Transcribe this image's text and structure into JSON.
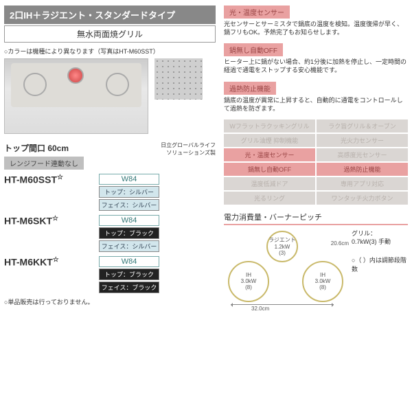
{
  "header": {
    "title": "2口IH＋ラジエント・スタンダードタイプ",
    "subtitle": "無水両面焼グリル"
  },
  "colorNote": "○カラーは機種により異なります（写真はHT-M60SST）",
  "topSpec": "トップ間口 60cm",
  "rangeHood": "レンジフード連動なし",
  "makerNote": "日立グローバルライフ\nソリューションズ製",
  "models": [
    {
      "code": "HT-M60SST",
      "w": "W84",
      "top": "トップ：シルバー",
      "topClass": "silver",
      "face": "フェイス：シルバー",
      "faceClass": "silver"
    },
    {
      "code": "HT-M6SKT",
      "w": "W84",
      "top": "トップ：ブラック",
      "topClass": "black",
      "face": "フェイス：シルバー",
      "faceClass": "silver"
    },
    {
      "code": "HT-M6KKT",
      "w": "W84",
      "top": "トップ：ブラック",
      "topClass": "black",
      "face": "フェイス：ブラック",
      "faceClass": "black"
    }
  ],
  "footNote": "○単品販売は行っておりません。",
  "features": [
    {
      "title": "光・温度センサー",
      "text": "光センサーとサーミスタで鍋底の温度を検知。温度復帰が早く、鍋フリもOK。予熱完了もお知らせします。"
    },
    {
      "title": "鍋無し自動OFF",
      "text": "ヒーター上に鍋がない場合、約1分後に加熱を停止し、一定時間の経過で通電をストップする安心機能です。"
    },
    {
      "title": "過熱防止機能",
      "text": "鍋底の温度が異常に上昇すると、自動的に通電をコントロールして過熱を防ぎます。"
    }
  ],
  "gridItems": [
    {
      "label": "Wフラットラクッキングリル",
      "active": false
    },
    {
      "label": "ラク旨グリル＆オーブン",
      "active": false
    },
    {
      "label": "グリル油煙 抑制機能",
      "active": false
    },
    {
      "label": "光火力センサー",
      "active": false
    },
    {
      "label": "光・温度センサー",
      "active": true
    },
    {
      "label": "高感度光センサー",
      "active": false
    },
    {
      "label": "鍋無し自動OFF",
      "active": true
    },
    {
      "label": "過熱防止機能",
      "active": true
    },
    {
      "label": "温度低減ドア",
      "active": false
    },
    {
      "label": "専用アプリ対応",
      "active": false
    },
    {
      "label": "光るリング",
      "active": false
    },
    {
      "label": "ワンタッチ火力ボタン",
      "active": false
    }
  ],
  "power": {
    "title": "電力消費量・バーナーピッチ",
    "left": {
      "l1": "IH",
      "l2": "3.0kW",
      "l3": "(8)"
    },
    "center": {
      "l1": "ラジエント",
      "l2": "1.2kW",
      "l3": "(3)"
    },
    "right": {
      "l1": "IH",
      "l2": "3.0kW",
      "l3": "(8)"
    },
    "width": "32.0cm",
    "depth": "20.6cm",
    "grill": "グリル：\n0.7kW(3) 手動",
    "note": "○（ ）内は調節段階数"
  }
}
